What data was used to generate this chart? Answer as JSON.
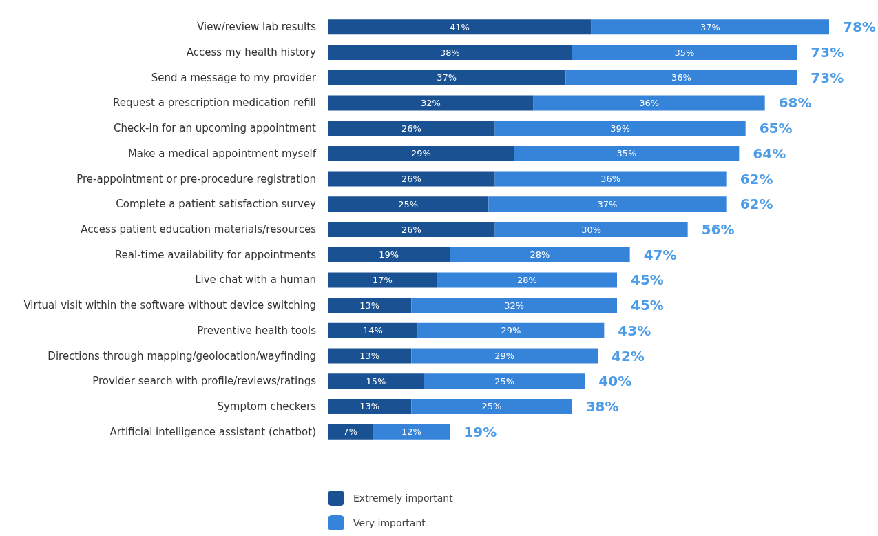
{
  "chart_data": {
    "type": "bar",
    "orientation": "horizontal",
    "stacked": true,
    "legend": "bottom",
    "categories": [
      "View/review lab results",
      "Access my health history",
      "Send a message to my provider",
      "Request a prescription medication refill",
      "Check-in for an upcoming appointment",
      "Make a medical appointment myself",
      "Pre-appointment or pre-procedure registration",
      "Complete a patient satisfaction survey",
      "Access patient education materials/resources",
      "Real-time availability for appointments",
      "Live chat with a human",
      "Virtual visit within the software without device switching",
      "Preventive health tools",
      "Directions through mapping/geolocation/wayfinding",
      "Provider search with profile/reviews/ratings",
      "Symptom checkers",
      "Artificial intelligence assistant (chatbot)"
    ],
    "series": [
      {
        "name": "Extremely important",
        "color": "#1a5192",
        "values": [
          41,
          38,
          37,
          32,
          26,
          29,
          26,
          25,
          26,
          19,
          17,
          13,
          14,
          13,
          15,
          13,
          7
        ],
        "value_labels": [
          "41%",
          "38%",
          "37%",
          "32%",
          "26%",
          "29%",
          "26%",
          "25%",
          "26%",
          "19%",
          "17%",
          "13%",
          "14%",
          "13%",
          "15%",
          "13%",
          "7%"
        ]
      },
      {
        "name": "Very important",
        "color": "#3584da",
        "values": [
          37,
          35,
          36,
          36,
          39,
          35,
          36,
          37,
          30,
          28,
          28,
          32,
          29,
          29,
          25,
          25,
          12
        ],
        "value_labels": [
          "37%",
          "35%",
          "36%",
          "36%",
          "39%",
          "35%",
          "36%",
          "37%",
          "30%",
          "28%",
          "28%",
          "32%",
          "29%",
          "29%",
          "25%",
          "25%",
          "12%"
        ]
      }
    ],
    "totals": [
      "78%",
      "73%",
      "73%",
      "68%",
      "65%",
      "64%",
      "62%",
      "62%",
      "56%",
      "47%",
      "45%",
      "45%",
      "43%",
      "42%",
      "40%",
      "38%",
      "19%"
    ]
  }
}
